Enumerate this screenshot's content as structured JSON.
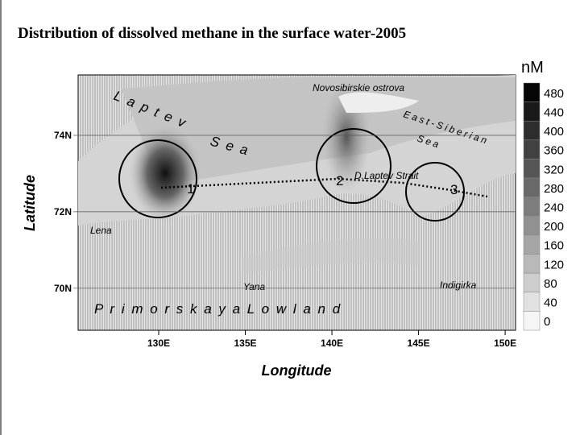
{
  "title": "Distribution of dissolved methane  in the surface water-2005",
  "map": {
    "x_label": "Longitude",
    "y_label": "Latitude",
    "xlim": [
      125.35,
      150.6
    ],
    "ylim": [
      68.9,
      75.58
    ],
    "xticks": [
      {
        "value": 130,
        "label": "130E"
      },
      {
        "value": 135,
        "label": "135E"
      },
      {
        "value": 140,
        "label": "140E"
      },
      {
        "value": 145,
        "label": "145E"
      },
      {
        "value": 150,
        "label": "150E"
      }
    ],
    "yticks": [
      {
        "value": 74,
        "label": "74N"
      },
      {
        "value": 72,
        "label": "72N"
      },
      {
        "value": 70,
        "label": "70N"
      }
    ],
    "places": [
      "L a p t e v",
      "S e a",
      "Novosibirskie ostrova",
      "East-Siberian",
      "Sea",
      "D.Laptev Strait",
      "Lena",
      "Yana",
      "Indigirka",
      "P r i m o r s k a y a   L o w l a n d"
    ],
    "stations": [
      "1",
      "2",
      "3"
    ]
  },
  "colorbar": {
    "unit": "nM",
    "levels": [
      480,
      440,
      400,
      360,
      320,
      280,
      240,
      200,
      160,
      120,
      80,
      40,
      0
    ]
  }
}
